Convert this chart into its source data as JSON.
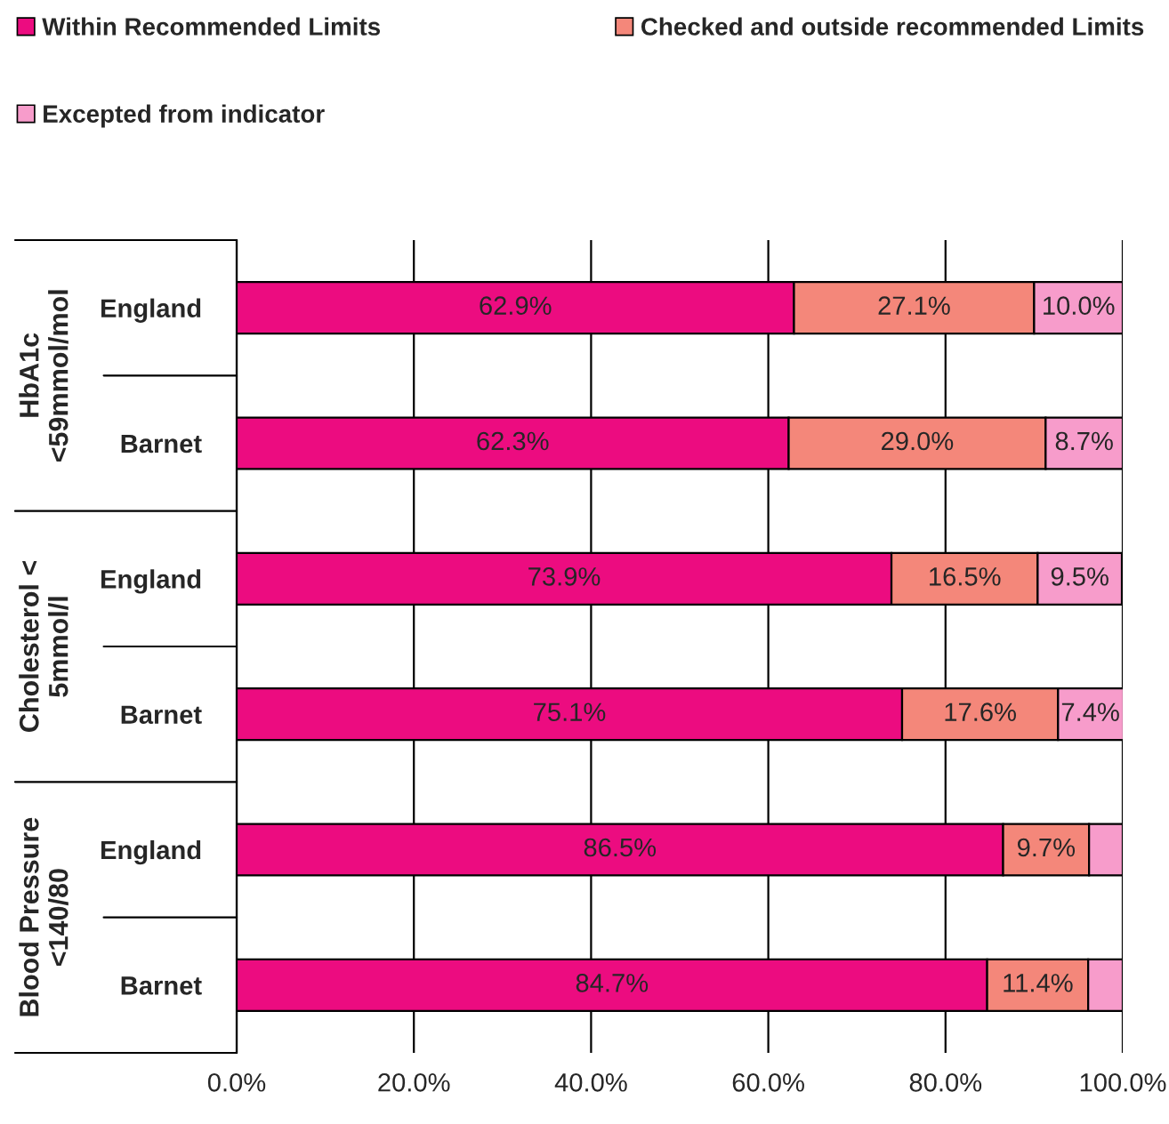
{
  "chart_data": {
    "type": "bar",
    "orientation": "horizontal",
    "stacked": true,
    "categories": [
      "England",
      "Barnet",
      "England",
      "Barnet",
      "England",
      "Barnet"
    ],
    "series": [
      {
        "name": "Within Recommended Limits",
        "color": "#ec0c80",
        "values": [
          62.9,
          62.3,
          73.9,
          75.1,
          86.5,
          84.7
        ],
        "value_labels": [
          "62.9%",
          "62.3%",
          "73.9%",
          "75.1%",
          "86.5%",
          "84.7%"
        ]
      },
      {
        "name": "Checked and outside recommended Limits",
        "color": "#f4877a",
        "values": [
          27.1,
          29.0,
          16.5,
          17.6,
          9.7,
          11.4
        ],
        "value_labels": [
          "27.1%",
          "29.0%",
          "16.5%",
          "17.6%",
          "9.7%",
          "11.4%"
        ]
      },
      {
        "name": "Excepted from indicator",
        "color": "#f79ccb",
        "values": [
          10.0,
          8.7,
          9.5,
          7.4,
          3.8,
          3.9
        ],
        "value_labels": [
          "10.0%",
          "8.7%",
          "9.5%",
          "7.4%",
          null,
          null
        ]
      }
    ],
    "annotations": [
      "HbA1c\n<59mmol/mol",
      "Cholesterol <\n5mmol/l",
      "Blood Pressure\n<140/80"
    ],
    "xlim": [
      0,
      100
    ],
    "xticks": [
      {
        "value": 0,
        "label": "0.0%"
      },
      {
        "value": 20,
        "label": "20.0%"
      },
      {
        "value": 40,
        "label": "40.0%"
      },
      {
        "value": 60,
        "label": "60.0%"
      },
      {
        "value": 80,
        "label": "80.0%"
      },
      {
        "value": 100,
        "label": "100.0%"
      }
    ],
    "grid": "x",
    "legend": "top"
  }
}
